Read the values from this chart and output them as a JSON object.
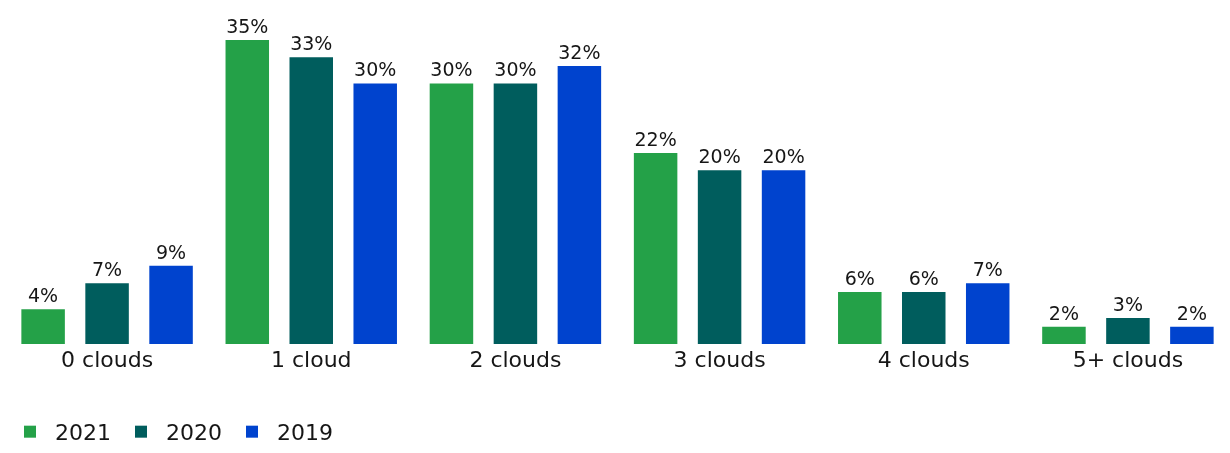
{
  "chart_data": {
    "type": "bar",
    "categories": [
      "0 clouds",
      "1 cloud",
      "2 clouds",
      "3 clouds",
      "4 clouds",
      "5+ clouds"
    ],
    "series": [
      {
        "name": "2021",
        "color": "#24a148",
        "values": [
          4,
          35,
          30,
          22,
          6,
          2
        ],
        "value_labels": [
          "4%",
          "35%",
          "30%",
          "22%",
          "6%",
          "2%"
        ]
      },
      {
        "name": "2020",
        "color": "#005d5d",
        "values": [
          7,
          33,
          30,
          20,
          6,
          3
        ],
        "value_labels": [
          "7%",
          "33%",
          "30%",
          "20%",
          "6%",
          "3%"
        ]
      },
      {
        "name": "2019",
        "color": "#0043ce",
        "values": [
          9,
          30,
          32,
          20,
          7,
          2
        ],
        "value_labels": [
          "9%",
          "30%",
          "32%",
          "20%",
          "7%",
          "2%"
        ]
      }
    ],
    "ylim": [
      0,
      35
    ],
    "tick_labels": "x",
    "legend": "bottom left"
  }
}
